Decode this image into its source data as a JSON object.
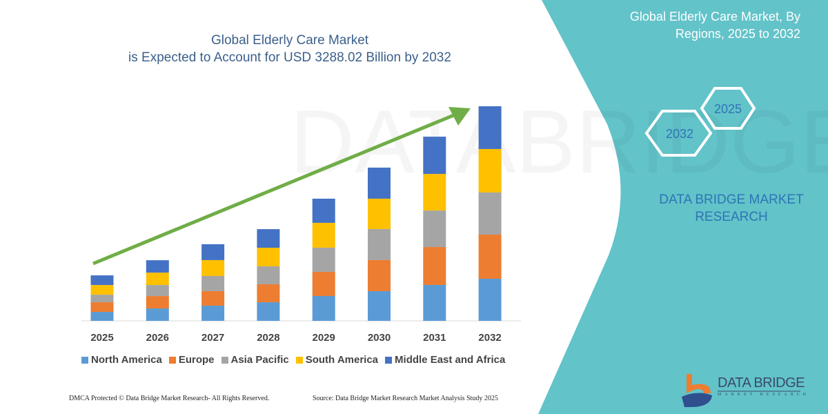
{
  "header": {
    "title_line1": "Global Elderly Care Market",
    "title_line2": "is Expected to Account for USD 3288.02 Billion by 2032"
  },
  "side_panel": {
    "title_line1": "Global Elderly Care Market, By",
    "title_line2": "Regions, 2025 to 2032",
    "hex_start_year": "2025",
    "hex_end_year": "2032",
    "brand_line1": "DATA BRIDGE MARKET",
    "brand_line2": "RESEARCH",
    "color": "#62c3c9"
  },
  "logo": {
    "name": "DATA BRIDGE",
    "tagline": "MARKET RESEARCH"
  },
  "footer": {
    "copyright": "DMCA Protected © Data Bridge Market Research-  All Rights Reserved.",
    "source": "Source: Data Bridge Market Research  Market Analysis Study 2025"
  },
  "chart_data": {
    "type": "bar",
    "stacked": true,
    "categories": [
      "2025",
      "2026",
      "2027",
      "2028",
      "2029",
      "2030",
      "2031",
      "2032"
    ],
    "series": [
      {
        "name": "North America",
        "color": "#5b9bd5",
        "values": [
          137,
          190,
          233,
          285,
          381,
          455,
          550,
          645
        ]
      },
      {
        "name": "Europe",
        "color": "#ed7d31",
        "values": [
          148,
          190,
          222,
          275,
          370,
          476,
          581,
          677
        ]
      },
      {
        "name": "Asia Pacific",
        "color": "#a5a5a5",
        "values": [
          116,
          169,
          233,
          275,
          370,
          476,
          560,
          645
        ]
      },
      {
        "name": "South America",
        "color": "#ffc000",
        "values": [
          148,
          190,
          243,
          285,
          381,
          465,
          560,
          666
        ]
      },
      {
        "name": "Middle East and Africa",
        "color": "#4472c4",
        "values": [
          148,
          190,
          243,
          285,
          370,
          476,
          571,
          655
        ]
      }
    ],
    "ylim": [
      0,
      3288.02
    ],
    "y_axis_shown": false,
    "grid": false,
    "legend_position": "bottom",
    "trend_arrow_color": "#70ad47"
  }
}
